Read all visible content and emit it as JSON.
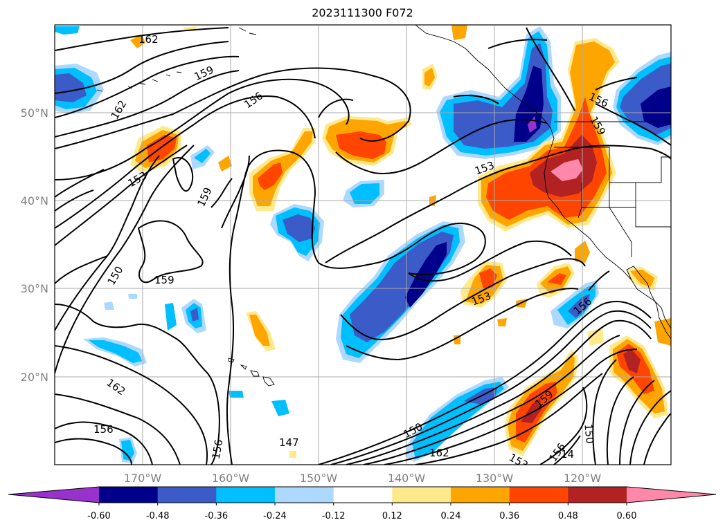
{
  "title": "2023111300 F072",
  "latitude_labels": [
    "50°N",
    "40°N",
    "30°N",
    "20°N"
  ],
  "longitude_labels": [
    "170°W",
    "160°W",
    "150°W",
    "140°W",
    "130°W",
    "120°W"
  ],
  "contour_labels": [
    "162",
    "159",
    "156",
    "162",
    "153",
    "159",
    "150",
    "159",
    "156",
    "153",
    "153",
    "156",
    "159",
    "162",
    "150",
    "147",
    "156",
    "162",
    "156",
    "159",
    "150",
    "153",
    "156",
    "14"
  ],
  "colorbar": {
    "ticks": [
      "-0.60",
      "-0.48",
      "-0.36",
      "-0.24",
      "-0.12",
      "0.12",
      "0.24",
      "0.36",
      "0.48",
      "0.60"
    ],
    "colors": [
      "#9932CC",
      "#00008B",
      "#3A5BC8",
      "#00BFFF",
      "#ADD8FF",
      "#FFFFFF",
      "#FFE98A",
      "#FFA500",
      "#FF4500",
      "#B22222",
      "#FF88AA"
    ]
  },
  "map_colors": {
    "background": "#FFFFFF",
    "contour": "#000000",
    "grid": "#AAAAAA"
  }
}
